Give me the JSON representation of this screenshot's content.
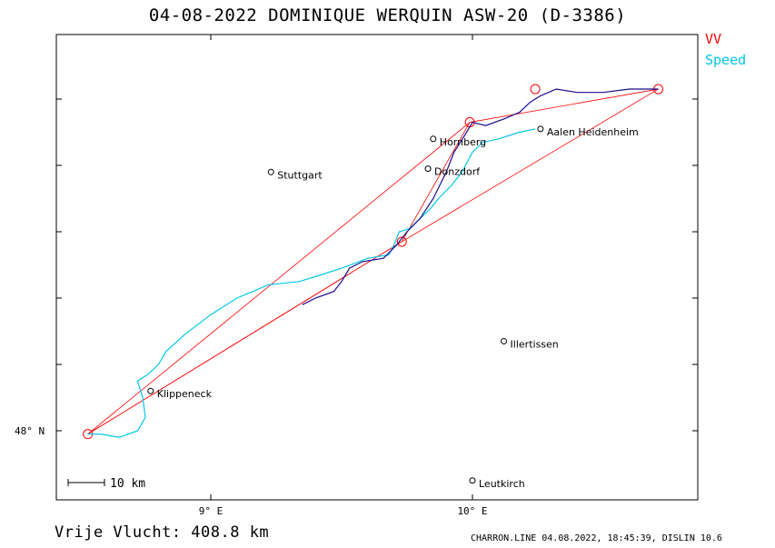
{
  "title": "04-08-2022   DOMINIQUE WERQUIN   ASW-20 (D-3386)",
  "legend": {
    "vv_label": "VV",
    "speed_label": "Speed"
  },
  "colors": {
    "vv": "#ff0000",
    "speed": "#00c8e8",
    "track_climb": "#1a0a8c",
    "frame": "#000000"
  },
  "footer": {
    "free_flight": "Vrije Vlucht:  408.8 km",
    "stamp": "CHARRON.LINE 04.08.2022, 18:45:39, DISLIN 10.6"
  },
  "scale_bar": {
    "label": "10 km",
    "km": 10
  },
  "axes": {
    "x_ticks": [
      {
        "label": "9° E",
        "lon": 9.0
      },
      {
        "label": "10° E",
        "lon": 10.0
      }
    ],
    "y_ticks": [
      {
        "label": "48° N",
        "lat": 48.0
      }
    ]
  },
  "cities": [
    {
      "name": "Stuttgart",
      "lon": 9.23,
      "lat": 48.78
    },
    {
      "name": "Hornberg",
      "lon": 9.85,
      "lat": 48.88
    },
    {
      "name": "Donzdorf",
      "lon": 9.83,
      "lat": 48.79
    },
    {
      "name": "Aalen Heidenheim",
      "lon": 10.26,
      "lat": 48.91
    },
    {
      "name": "Illertissen",
      "lon": 10.12,
      "lat": 48.27
    },
    {
      "name": "Klippeneck",
      "lon": 8.77,
      "lat": 48.12
    },
    {
      "name": "Leutkirch",
      "lon": 10.0,
      "lat": 47.85
    }
  ],
  "turnpoints": [
    {
      "lon": 8.53,
      "lat": 47.99
    },
    {
      "lon": 9.73,
      "lat": 48.57
    },
    {
      "lon": 9.99,
      "lat": 48.93
    },
    {
      "lon": 10.24,
      "lat": 49.03
    },
    {
      "lon": 10.71,
      "lat": 49.03
    }
  ],
  "task_legs": [
    [
      0,
      2
    ],
    [
      2,
      4
    ],
    [
      4,
      1
    ],
    [
      1,
      0
    ],
    [
      0,
      1
    ],
    [
      1,
      2
    ]
  ],
  "speed_track": [
    [
      8.53,
      47.99
    ],
    [
      8.58,
      47.99
    ],
    [
      8.65,
      47.98
    ],
    [
      8.72,
      48.0
    ],
    [
      8.75,
      48.04
    ],
    [
      8.74,
      48.1
    ],
    [
      8.72,
      48.15
    ],
    [
      8.76,
      48.17
    ],
    [
      8.8,
      48.2
    ],
    [
      8.83,
      48.24
    ],
    [
      8.9,
      48.29
    ],
    [
      8.95,
      48.32
    ],
    [
      9.0,
      48.35
    ],
    [
      9.1,
      48.4
    ],
    [
      9.22,
      48.44
    ],
    [
      9.34,
      48.45
    ],
    [
      9.42,
      48.47
    ],
    [
      9.5,
      48.49
    ],
    [
      9.6,
      48.52
    ],
    [
      9.68,
      48.53
    ],
    [
      9.7,
      48.56
    ],
    [
      9.72,
      48.6
    ],
    [
      9.76,
      48.61
    ],
    [
      9.8,
      48.64
    ],
    [
      9.84,
      48.67
    ],
    [
      9.87,
      48.7
    ],
    [
      9.92,
      48.74
    ],
    [
      9.96,
      48.78
    ],
    [
      10.0,
      48.84
    ],
    [
      10.04,
      48.87
    ],
    [
      10.1,
      48.88
    ],
    [
      10.18,
      48.9
    ],
    [
      10.24,
      48.91
    ]
  ],
  "climb_track": [
    [
      9.35,
      48.38
    ],
    [
      9.4,
      48.4
    ],
    [
      9.47,
      48.42
    ],
    [
      9.5,
      48.45
    ],
    [
      9.53,
      48.49
    ],
    [
      9.58,
      48.51
    ],
    [
      9.66,
      48.52
    ],
    [
      9.71,
      48.56
    ],
    [
      9.75,
      48.6
    ],
    [
      9.8,
      48.64
    ],
    [
      9.85,
      48.7
    ],
    [
      9.9,
      48.78
    ],
    [
      9.93,
      48.84
    ],
    [
      9.97,
      48.89
    ],
    [
      10.0,
      48.93
    ],
    [
      10.05,
      48.92
    ],
    [
      10.12,
      48.94
    ],
    [
      10.18,
      48.96
    ],
    [
      10.22,
      48.99
    ],
    [
      10.26,
      49.01
    ],
    [
      10.32,
      49.03
    ],
    [
      10.4,
      49.02
    ],
    [
      10.5,
      49.02
    ],
    [
      10.6,
      49.03
    ],
    [
      10.71,
      49.03
    ]
  ]
}
